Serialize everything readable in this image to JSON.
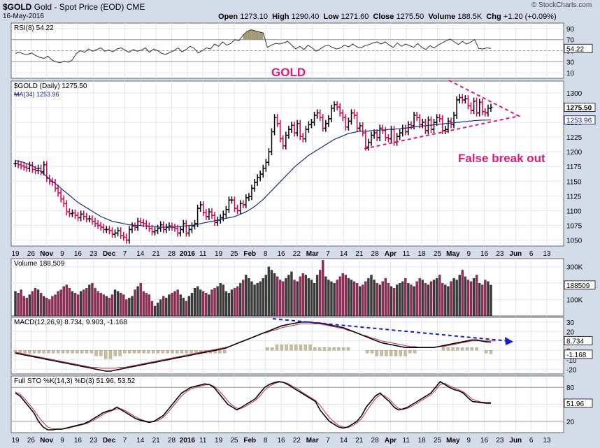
{
  "header": {
    "symbol": "$GOLD",
    "description": "Gold - Spot Price (EOD)",
    "exchange": "CME",
    "date": "16-May-2016",
    "open_label": "Open",
    "open": "1273.10",
    "high_label": "High",
    "high": "1290.40",
    "low_label": "Low",
    "low": "1271.60",
    "close_label": "Close",
    "close": "1275.50",
    "volume_label": "Volume",
    "volume": "188.5K",
    "chg_label": "Chg",
    "chg": "+1.20 (+0.09%)",
    "watermark": "© StockCharts.com"
  },
  "colors": {
    "background": "#d4dce9",
    "plot": "#ffffff",
    "up_bar": "#000000",
    "down_bar": "#d9004c",
    "ma_line": "#1d2a80",
    "annotation": "#e0187a",
    "trend_arrow": "#1b1bd0",
    "rsi_fill": "#a3997a",
    "macd_hist": "#c8bf9e"
  },
  "annotations": {
    "title": "GOLD",
    "false_break_out": "False break out"
  },
  "x_axis": {
    "labels": [
      "19",
      "26",
      "Nov",
      "9",
      "16",
      "23",
      "Dec",
      "7",
      "14",
      "21",
      "28",
      "2016",
      "11",
      "19",
      "25",
      "Feb",
      "8",
      "16",
      "22",
      "Mar",
      "7",
      "14",
      "21",
      "28",
      "Apr",
      "11",
      "18",
      "25",
      "May",
      "9",
      "16",
      "23",
      "Jun",
      "6",
      "13"
    ],
    "bold": [
      "Nov",
      "Dec",
      "2016",
      "Feb",
      "Mar",
      "Apr",
      "May",
      "Jun"
    ]
  },
  "chart_data": [
    {
      "type": "line",
      "panel": "RSI",
      "title": "RSI(8) 54.22",
      "current_value": "54.22",
      "ylim": [
        0,
        100
      ],
      "yticks": [
        "90",
        "70",
        "50",
        "30",
        "10"
      ],
      "reference_lines": [
        70,
        50,
        30
      ],
      "values": [
        45,
        47,
        44,
        43,
        46,
        41,
        38,
        36,
        40,
        33,
        30,
        28,
        31,
        29,
        33,
        45,
        50,
        47,
        53,
        49,
        52,
        55,
        49,
        51,
        48,
        53,
        55,
        51,
        47,
        52,
        49,
        51,
        55,
        47,
        53,
        50,
        45,
        43,
        47,
        50,
        55,
        48,
        52,
        58,
        54,
        46,
        50,
        55,
        53,
        62,
        58,
        66,
        60,
        63,
        70,
        68,
        78,
        85,
        88,
        86,
        84,
        82,
        56,
        60,
        63,
        62,
        64,
        67,
        60,
        53,
        58,
        52,
        60,
        55,
        49,
        53,
        58,
        60,
        56,
        53,
        55,
        60,
        57,
        62,
        57,
        55,
        59,
        61,
        64,
        66,
        62,
        66,
        60,
        56,
        64,
        58,
        62,
        59,
        56,
        63,
        56,
        52,
        59,
        55,
        60,
        64,
        68,
        71,
        66,
        61,
        67,
        62,
        65,
        70,
        54,
        53,
        55,
        54
      ]
    },
    {
      "type": "candlestick",
      "panel": "Price",
      "title": "$GOLD (Daily) 1275.50",
      "ma_label": "MA(34) 1253.96",
      "current_value": "1275.50",
      "ma_current_value": "1253.96",
      "ylim": [
        1040,
        1320
      ],
      "yticks": [
        "1300",
        "1275",
        "1250",
        "1225",
        "1200",
        "1175",
        "1150",
        "1125",
        "1100",
        "1075",
        "1050"
      ],
      "close": [
        1180,
        1178,
        1176,
        1174,
        1172,
        1177,
        1170,
        1168,
        1172,
        1166,
        1178,
        1155,
        1150,
        1148,
        1138,
        1130,
        1120,
        1112,
        1098,
        1095,
        1096,
        1092,
        1088,
        1094,
        1090,
        1086,
        1086,
        1082,
        1078,
        1075,
        1072,
        1068,
        1068,
        1066,
        1060,
        1062,
        1066,
        1058,
        1055,
        1050,
        1068,
        1074,
        1072,
        1082,
        1080,
        1078,
        1074,
        1070,
        1064,
        1066,
        1070,
        1076,
        1068,
        1072,
        1074,
        1072,
        1070,
        1062,
        1068,
        1078,
        1062,
        1068,
        1074,
        1078,
        1104,
        1110,
        1097,
        1090,
        1098,
        1092,
        1080,
        1084,
        1088,
        1094,
        1102,
        1118,
        1118,
        1104,
        1100,
        1112,
        1110,
        1122,
        1124,
        1138,
        1148,
        1156,
        1162,
        1172,
        1182,
        1200,
        1234,
        1258,
        1248,
        1222,
        1210,
        1228,
        1238,
        1245,
        1232,
        1248,
        1226,
        1222,
        1238,
        1246,
        1250,
        1262,
        1266,
        1258,
        1240,
        1248,
        1256,
        1274,
        1280,
        1276,
        1266,
        1258,
        1242,
        1252,
        1266,
        1262,
        1240,
        1244,
        1232,
        1208,
        1216,
        1228,
        1232,
        1224,
        1240,
        1236,
        1224,
        1222,
        1238,
        1216,
        1226,
        1232,
        1240,
        1234,
        1246,
        1244,
        1262,
        1258,
        1246,
        1250,
        1236,
        1254,
        1238,
        1250,
        1258,
        1256,
        1236,
        1238,
        1252,
        1246,
        1262,
        1288,
        1292,
        1288,
        1290,
        1278,
        1270,
        1286,
        1266,
        1284,
        1268,
        1266,
        1274,
        1275.5
      ],
      "ma": [
        1185,
        1184,
        1183,
        1182,
        1180,
        1178,
        1176,
        1173,
        1170,
        1166,
        1162,
        1158,
        1154,
        1150,
        1146,
        1142,
        1138,
        1134,
        1130,
        1126,
        1122,
        1118,
        1114,
        1111,
        1108,
        1105,
        1102,
        1099,
        1096,
        1093,
        1090,
        1088,
        1086,
        1084,
        1082,
        1081,
        1080,
        1079,
        1078,
        1077,
        1076,
        1076,
        1075,
        1075,
        1075,
        1074,
        1074,
        1073,
        1073,
        1073,
        1072,
        1072,
        1072,
        1072,
        1072,
        1072,
        1072,
        1073,
        1073,
        1074,
        1074,
        1075,
        1075,
        1076,
        1077,
        1078,
        1079,
        1080,
        1081,
        1082,
        1083,
        1084,
        1085,
        1086,
        1087,
        1088,
        1089,
        1090,
        1092,
        1094,
        1096,
        1098,
        1101,
        1104,
        1107,
        1111,
        1115,
        1119,
        1124,
        1129,
        1134,
        1139,
        1144,
        1149,
        1154,
        1159,
        1164,
        1169,
        1174,
        1178,
        1182,
        1186,
        1190,
        1194,
        1197,
        1200,
        1203,
        1206,
        1209,
        1212,
        1215,
        1218,
        1221,
        1223,
        1225,
        1227,
        1229,
        1231,
        1232,
        1233,
        1234,
        1235,
        1235,
        1235,
        1235,
        1236,
        1236,
        1236,
        1237,
        1237,
        1237,
        1238,
        1238,
        1238,
        1239,
        1239,
        1240,
        1240,
        1241,
        1241,
        1242,
        1243,
        1243,
        1244,
        1244,
        1245,
        1245,
        1246,
        1246,
        1247,
        1247,
        1248,
        1248,
        1249,
        1249,
        1250,
        1250,
        1251,
        1251,
        1252,
        1252,
        1253,
        1253,
        1253.5,
        1253.7,
        1253.8,
        1253.9,
        1253.96
      ]
    },
    {
      "type": "bar",
      "panel": "Volume",
      "title": "Volume 188,509",
      "current_value": "188509",
      "ylim": [
        0,
        350
      ],
      "yticks": [
        "300K",
        "200K",
        "100K"
      ],
      "values_k": [
        150,
        140,
        160,
        120,
        110,
        130,
        150,
        170,
        160,
        140,
        120,
        110,
        100,
        120,
        130,
        150,
        160,
        180,
        190,
        170,
        150,
        140,
        130,
        150,
        160,
        170,
        190,
        200,
        170,
        150,
        140,
        130,
        120,
        110,
        130,
        160,
        150,
        140,
        130,
        100,
        110,
        120,
        160,
        180,
        200,
        150,
        140,
        130,
        90,
        60,
        80,
        100,
        120,
        110,
        130,
        140,
        150,
        160,
        130,
        110,
        90,
        120,
        140,
        170,
        180,
        160,
        150,
        140,
        130,
        160,
        170,
        180,
        200,
        190,
        150,
        140,
        160,
        170,
        180,
        200,
        220,
        250,
        230,
        210,
        190,
        200,
        210,
        230,
        250,
        300,
        280,
        260,
        240,
        220,
        210,
        230,
        250,
        270,
        220,
        210,
        240,
        260,
        250,
        230,
        220,
        200,
        250,
        280,
        340,
        240,
        220,
        210,
        200,
        220,
        240,
        260,
        250,
        230,
        220,
        210,
        200,
        180,
        190,
        210,
        230,
        250,
        220,
        200,
        190,
        210,
        230,
        200,
        180,
        170,
        190,
        200,
        210,
        230,
        200,
        190,
        180,
        210,
        230,
        220,
        200,
        190,
        210,
        220,
        230,
        250,
        200,
        190,
        180,
        210,
        230,
        220,
        250,
        280,
        240,
        220,
        210,
        230,
        250,
        200,
        190,
        220,
        210,
        188.5
      ]
    },
    {
      "type": "line",
      "panel": "MACD",
      "title": "MACD(12,26,9) 8.734, 9.903, -1.168",
      "current_values": [
        "8.734",
        "9.903",
        "-1.168"
      ],
      "ylim": [
        -25,
        35
      ],
      "yticks": [
        "30",
        "20",
        "10",
        "0",
        "-10",
        "-20"
      ],
      "series": [
        {
          "name": "MACD",
          "values": [
            -3,
            -4,
            -5,
            -6,
            -7,
            -8,
            -9,
            -10,
            -11,
            -12,
            -13,
            -14,
            -15,
            -16,
            -17,
            -18,
            -19,
            -20,
            -21,
            -22,
            -22,
            -21,
            -20,
            -19,
            -18,
            -17,
            -16,
            -15,
            -14,
            -13,
            -12,
            -11,
            -10,
            -9,
            -8,
            -7,
            -6,
            -5,
            -4,
            -3,
            -2,
            -1,
            0,
            1,
            2,
            4,
            6,
            8,
            10,
            12,
            14,
            16,
            18,
            20,
            22,
            24,
            26,
            27,
            28,
            29,
            30,
            30,
            30,
            29,
            29,
            28,
            27,
            26,
            25,
            24,
            22,
            20,
            18,
            16,
            14,
            12,
            10,
            8,
            7,
            6,
            5,
            4,
            3,
            3,
            3,
            3,
            3,
            3,
            3,
            4,
            5,
            6,
            7,
            8,
            9,
            10,
            11,
            11,
            10,
            9,
            8.734
          ]
        },
        {
          "name": "Signal",
          "values": [
            -2,
            -3,
            -4,
            -5,
            -6,
            -7,
            -8,
            -9,
            -10,
            -11,
            -12,
            -13,
            -14,
            -15,
            -16,
            -17,
            -18,
            -18,
            -19,
            -19,
            -19,
            -19,
            -18,
            -18,
            -17,
            -16,
            -15,
            -14,
            -13,
            -12,
            -11,
            -10,
            -9,
            -8,
            -7,
            -6,
            -5,
            -4,
            -3,
            -2,
            -1,
            0,
            1,
            2,
            3,
            4,
            6,
            8,
            10,
            12,
            14,
            16,
            18,
            19,
            21,
            22,
            24,
            25,
            26,
            27,
            28,
            28,
            28,
            28,
            28,
            27,
            26,
            25,
            24,
            23,
            21,
            20,
            18,
            16,
            15,
            13,
            12,
            10,
            9,
            8,
            7,
            6,
            5,
            4,
            4,
            3,
            3,
            3,
            3,
            4,
            4,
            5,
            6,
            7,
            8,
            9,
            10,
            10,
            10,
            10,
            10,
            9.903
          ]
        }
      ],
      "trend_arrow": "falling"
    },
    {
      "type": "line",
      "panel": "STO",
      "title": "Full STO %K(14,3) %D(3) 51.96, 53.52",
      "current_values": [
        "51.96",
        "53.52"
      ],
      "ylim": [
        0,
        100
      ],
      "yticks": [
        "80",
        "50",
        "20"
      ],
      "reference_lines": [
        80,
        20
      ],
      "series": [
        {
          "name": "%K",
          "values": [
            70,
            65,
            55,
            45,
            35,
            20,
            10,
            5,
            5,
            6,
            6,
            8,
            10,
            12,
            14,
            16,
            20,
            25,
            30,
            35,
            38,
            40,
            45,
            40,
            35,
            30,
            25,
            22,
            20,
            18,
            20,
            25,
            30,
            40,
            50,
            60,
            70,
            75,
            80,
            82,
            84,
            86,
            85,
            80,
            70,
            60,
            50,
            45,
            40,
            45,
            50,
            55,
            60,
            70,
            80,
            85,
            88,
            90,
            89,
            85,
            80,
            75,
            70,
            65,
            60,
            55,
            40,
            30,
            20,
            15,
            10,
            8,
            10,
            15,
            20,
            30,
            45,
            55,
            65,
            70,
            62,
            55,
            45,
            40,
            42,
            45,
            50,
            55,
            60,
            65,
            70,
            80,
            90,
            85,
            80,
            76,
            74,
            70,
            62,
            55,
            54,
            53,
            52,
            51.96
          ]
        },
        {
          "name": "%D",
          "values": [
            72,
            68,
            60,
            50,
            40,
            28,
            18,
            10,
            7,
            6,
            6,
            7,
            9,
            11,
            13,
            15,
            18,
            22,
            27,
            32,
            36,
            39,
            42,
            42,
            38,
            33,
            28,
            24,
            21,
            19,
            19,
            22,
            27,
            35,
            45,
            55,
            65,
            72,
            77,
            80,
            82,
            84,
            85,
            82,
            75,
            66,
            56,
            48,
            43,
            43,
            47,
            52,
            57,
            65,
            75,
            82,
            86,
            89,
            89,
            87,
            82,
            78,
            72,
            67,
            62,
            57,
            48,
            37,
            27,
            19,
            13,
            10,
            9,
            12,
            17,
            25,
            37,
            49,
            60,
            67,
            65,
            59,
            50,
            43,
            41,
            43,
            47,
            52,
            57,
            62,
            67,
            75,
            85,
            87,
            83,
            79,
            76,
            72,
            66,
            59,
            56,
            54,
            53.5,
            53.52
          ]
        }
      ]
    }
  ]
}
